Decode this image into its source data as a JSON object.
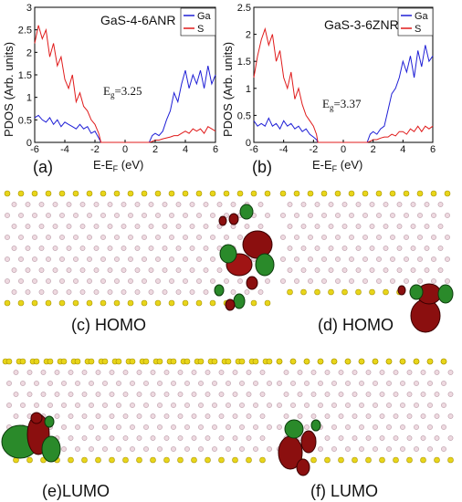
{
  "chart_data": [
    {
      "type": "line",
      "panel_label": "(a)",
      "title": "GaS-4-6ANR",
      "xlabel": "E-E",
      "xlabel_sub": "F",
      "xlabel_unit": " (eV)",
      "ylabel": "PDOS (Arb. units)",
      "xlim": [
        -6,
        6
      ],
      "ylim": [
        0,
        3
      ],
      "xticks": [
        -6,
        -4,
        -2,
        0,
        2,
        4,
        6
      ],
      "yticks": [
        0,
        0.5,
        1,
        1.5,
        2,
        2.5,
        3
      ],
      "gap_label_main": "E",
      "gap_label_sub": "g",
      "gap_label_value": "=3.25",
      "legend_position": "top-right",
      "series": [
        {
          "name": "Ga",
          "color": "#1f1fd6",
          "x": [
            -6.0,
            -5.75,
            -5.5,
            -5.25,
            -5.0,
            -4.75,
            -4.5,
            -4.25,
            -4.0,
            -3.75,
            -3.5,
            -3.25,
            -3.0,
            -2.75,
            -2.5,
            -2.25,
            -2.0,
            -1.75,
            -1.6,
            1.6,
            1.8,
            2.0,
            2.25,
            2.5,
            2.75,
            3.0,
            3.25,
            3.5,
            3.75,
            4.0,
            4.25,
            4.5,
            4.75,
            5.0,
            5.25,
            5.5,
            5.75,
            6.0
          ],
          "y": [
            0.55,
            0.6,
            0.5,
            0.45,
            0.55,
            0.4,
            0.5,
            0.35,
            0.45,
            0.4,
            0.35,
            0.3,
            0.4,
            0.3,
            0.35,
            0.2,
            0.25,
            0.1,
            0.0,
            0.0,
            0.15,
            0.2,
            0.15,
            0.25,
            0.5,
            0.7,
            1.1,
            0.9,
            1.3,
            1.6,
            1.2,
            1.5,
            1.3,
            1.6,
            1.2,
            1.7,
            1.3,
            1.5
          ]
        },
        {
          "name": "S",
          "color": "#e01b1b",
          "x": [
            -6.0,
            -5.75,
            -5.5,
            -5.25,
            -5.0,
            -4.75,
            -4.5,
            -4.25,
            -4.0,
            -3.75,
            -3.5,
            -3.25,
            -3.0,
            -2.75,
            -2.5,
            -2.25,
            -2.0,
            -1.75,
            -1.6,
            1.6,
            1.8,
            2.0,
            2.25,
            2.5,
            2.75,
            3.0,
            3.25,
            3.5,
            3.75,
            4.0,
            4.25,
            4.5,
            4.75,
            5.0,
            5.25,
            5.5,
            5.75,
            6.0
          ],
          "y": [
            2.2,
            2.6,
            2.3,
            2.5,
            1.9,
            2.2,
            1.7,
            1.9,
            1.4,
            1.2,
            1.5,
            0.9,
            1.1,
            0.8,
            0.7,
            0.5,
            0.4,
            0.2,
            0.0,
            0.0,
            0.02,
            0.05,
            0.05,
            0.08,
            0.1,
            0.12,
            0.15,
            0.15,
            0.2,
            0.25,
            0.2,
            0.3,
            0.25,
            0.3,
            0.2,
            0.35,
            0.3,
            0.25
          ]
        }
      ]
    },
    {
      "type": "line",
      "panel_label": "(b)",
      "title": "GaS-3-6ZNR",
      "xlabel": "E-E",
      "xlabel_sub": "F",
      "xlabel_unit": " (eV)",
      "ylabel": "PDOS (Arb. units)",
      "xlim": [
        -6,
        6
      ],
      "ylim": [
        0,
        2.5
      ],
      "xticks": [
        -6,
        -4,
        -2,
        0,
        2,
        4,
        6
      ],
      "yticks": [
        0,
        0.5,
        1,
        1.5,
        2,
        2.5
      ],
      "gap_label_main": "E",
      "gap_label_sub": "g",
      "gap_label_value": "=3.37",
      "legend_position": "top-right",
      "series": [
        {
          "name": "Ga",
          "color": "#1f1fd6",
          "x": [
            -6.0,
            -5.75,
            -5.5,
            -5.25,
            -5.0,
            -4.75,
            -4.5,
            -4.25,
            -4.0,
            -3.75,
            -3.5,
            -3.25,
            -3.0,
            -2.75,
            -2.5,
            -2.25,
            -2.0,
            -1.8,
            -1.7,
            1.6,
            1.8,
            2.0,
            2.25,
            2.5,
            2.75,
            3.0,
            3.25,
            3.5,
            3.75,
            4.0,
            4.25,
            4.5,
            4.75,
            5.0,
            5.25,
            5.5,
            5.75,
            6.0
          ],
          "y": [
            0.4,
            0.3,
            0.35,
            0.3,
            0.45,
            0.3,
            0.35,
            0.25,
            0.4,
            0.3,
            0.35,
            0.25,
            0.3,
            0.2,
            0.25,
            0.15,
            0.1,
            0.05,
            0.0,
            0.0,
            0.15,
            0.2,
            0.15,
            0.25,
            0.3,
            0.6,
            0.9,
            1.0,
            1.2,
            1.5,
            1.3,
            1.6,
            1.2,
            1.7,
            1.4,
            1.8,
            1.5,
            1.6
          ]
        },
        {
          "name": "S",
          "color": "#e01b1b",
          "x": [
            -6.0,
            -5.75,
            -5.5,
            -5.25,
            -5.0,
            -4.75,
            -4.5,
            -4.25,
            -4.0,
            -3.75,
            -3.5,
            -3.25,
            -3.0,
            -2.75,
            -2.5,
            -2.25,
            -2.0,
            -1.8,
            -1.7,
            1.6,
            1.8,
            2.0,
            2.25,
            2.5,
            2.75,
            3.0,
            3.25,
            3.5,
            3.75,
            4.0,
            4.25,
            4.5,
            4.75,
            5.0,
            5.25,
            5.5,
            5.75,
            6.0
          ],
          "y": [
            1.2,
            1.6,
            1.9,
            2.1,
            1.8,
            2.0,
            1.5,
            1.7,
            1.2,
            1.0,
            1.3,
            0.8,
            1.0,
            0.7,
            0.5,
            0.4,
            0.3,
            0.15,
            0.0,
            0.0,
            0.02,
            0.05,
            0.05,
            0.08,
            0.1,
            0.1,
            0.15,
            0.12,
            0.2,
            0.2,
            0.15,
            0.25,
            0.2,
            0.3,
            0.2,
            0.3,
            0.25,
            0.3
          ]
        }
      ]
    }
  ],
  "molecules": [
    {
      "label": "(c)  HOMO"
    },
    {
      "label": "(d) HOMO"
    },
    {
      "label": "(e)LUMO"
    },
    {
      "label": "(f)  LUMO"
    }
  ]
}
